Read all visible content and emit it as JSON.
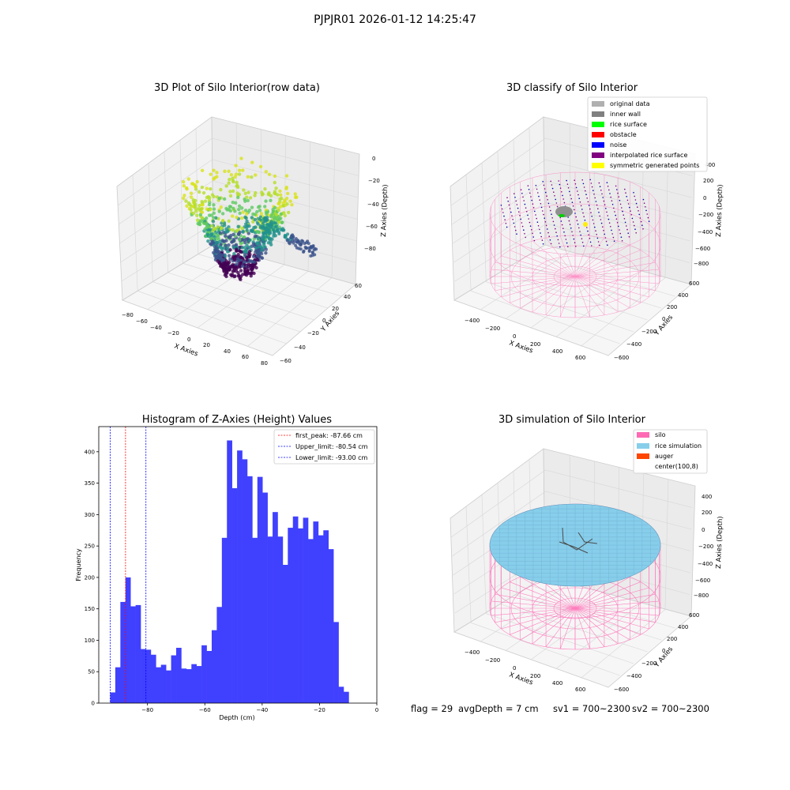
{
  "suptitle": "PJPJR01 2026-01-12 14:25:47",
  "panels": {
    "raw": {
      "title": "3D Plot of Silo Interior(row data)",
      "x_label": "X Axies",
      "y_label": "Y Axies",
      "z_label": "Z Axies (Depth)",
      "x_ticks": [
        "−80",
        "−60",
        "−40",
        "−20",
        "0",
        "20",
        "40",
        "60",
        "80"
      ],
      "y_ticks": [
        "−60",
        "−40",
        "−20",
        "0",
        "20",
        "40",
        "60"
      ],
      "z_ticks": [
        "0",
        "−20",
        "−40",
        "−60",
        "−80"
      ]
    },
    "classify": {
      "title": "3D classify of Silo Interior",
      "x_label": "X Axies",
      "y_label": "Y Axies",
      "z_label": "Z Axies (Depth)",
      "x_ticks": [
        "−400",
        "−200",
        "0",
        "200",
        "400",
        "600"
      ],
      "y_ticks": [
        "−600",
        "−400",
        "−200",
        "0",
        "200",
        "400",
        "600"
      ],
      "z_ticks": [
        "400",
        "200",
        "0",
        "−200",
        "−400",
        "−600",
        "−800"
      ],
      "legend": [
        {
          "label": "original data",
          "color": "#b0b0b0"
        },
        {
          "label": "inner wall",
          "color": "#808080"
        },
        {
          "label": "rice surface",
          "color": "#00ff00"
        },
        {
          "label": "obstacle",
          "color": "#ff0000"
        },
        {
          "label": "noise",
          "color": "#0000ff"
        },
        {
          "label": "interpolated rice surface",
          "color": "#800080"
        },
        {
          "label": "symmetric generated points",
          "color": "#ffff00"
        }
      ]
    },
    "simulation": {
      "title": "3D simulation of Silo Interior",
      "x_label": "X Axies",
      "y_label": "Y Axies",
      "z_label": "Z Axies (Depth)",
      "x_ticks": [
        "−400",
        "−200",
        "0",
        "200",
        "400",
        "600"
      ],
      "y_ticks": [
        "−600",
        "−400",
        "−200",
        "0",
        "200",
        "400",
        "600"
      ],
      "z_ticks": [
        "400",
        "200",
        "0",
        "−200",
        "−400",
        "−600",
        "−800"
      ],
      "legend": [
        {
          "label": "silo",
          "color": "#ff69b4"
        },
        {
          "label": "rice simulation",
          "color": "#87ceeb"
        },
        {
          "label": "auger",
          "color": "#ff4500"
        },
        {
          "label": "center(100,8)",
          "color": "#ffffff"
        }
      ]
    }
  },
  "footer": {
    "flag": "flag = 29",
    "avg_depth": "avgDepth = 7 cm",
    "sv1": "sv1 = 700~2300",
    "sv2": "sv2 = 700~2300"
  },
  "chart_data": {
    "type": "bar",
    "title": "Histogram of Z-Axies (Height) Values",
    "xlabel": "Depth (cm)",
    "ylabel": "Frequency",
    "xlim": [
      -97,
      0
    ],
    "ylim": [
      0,
      440
    ],
    "x_ticks": [
      -80,
      -60,
      -40,
      -20,
      0
    ],
    "y_ticks": [
      0,
      50,
      100,
      150,
      200,
      250,
      300,
      350,
      400
    ],
    "bar_color": "#4040ff",
    "bins": {
      "start": -93.0,
      "width": 1.77,
      "counts": [
        17,
        57,
        161,
        200,
        154,
        156,
        86,
        85,
        77,
        57,
        61,
        52,
        76,
        88,
        55,
        54,
        62,
        59,
        92,
        83,
        116,
        153,
        263,
        418,
        342,
        402,
        388,
        361,
        263,
        360,
        335,
        265,
        304,
        265,
        220,
        279,
        297,
        278,
        295,
        261,
        289,
        267,
        275,
        245,
        129,
        26,
        18
      ]
    },
    "vlines": [
      {
        "label": "first_peak: -87.66 cm",
        "x": -87.66,
        "color": "#ff0000"
      },
      {
        "label": "Upper_limit: -80.54 cm",
        "x": -80.54,
        "color": "#0000ff"
      },
      {
        "label": "Lower_limit: -93.00 cm",
        "x": -93.0,
        "color": "#0000ff"
      }
    ]
  }
}
